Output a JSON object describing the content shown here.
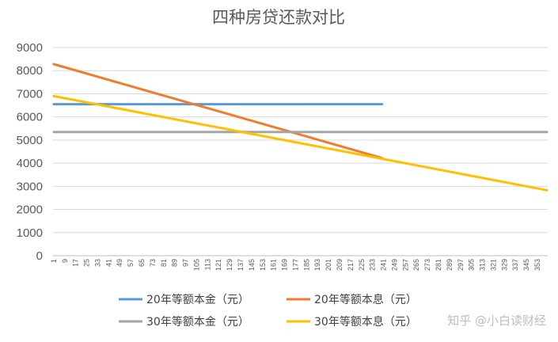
{
  "chart_data": {
    "type": "line",
    "title": "四种房贷还款对比",
    "xlabel": "",
    "ylabel": "",
    "ylim": [
      0,
      9000
    ],
    "yticks": [
      0,
      1000,
      2000,
      3000,
      4000,
      5000,
      6000,
      7000,
      8000,
      9000
    ],
    "xlim": [
      1,
      360
    ],
    "xticks": [
      1,
      9,
      17,
      25,
      33,
      41,
      49,
      57,
      65,
      73,
      81,
      89,
      97,
      105,
      113,
      121,
      129,
      137,
      145,
      153,
      161,
      169,
      177,
      185,
      193,
      201,
      209,
      217,
      225,
      233,
      241,
      249,
      257,
      265,
      273,
      281,
      289,
      297,
      305,
      313,
      321,
      329,
      337,
      345,
      353
    ],
    "grid": true,
    "legend_position": "bottom",
    "series": [
      {
        "name": "20年等额本金（元）",
        "color": "#5b9bd5",
        "x": [
          1,
          240
        ],
        "values": [
          6550,
          6550
        ]
      },
      {
        "name": "20年等额本息（元）",
        "color": "#ed7d31",
        "x": [
          1,
          240
        ],
        "values": [
          8280,
          4220
        ]
      },
      {
        "name": "30年等额本金（元）",
        "color": "#a5a5a5",
        "x": [
          1,
          360
        ],
        "values": [
          5350,
          5350
        ]
      },
      {
        "name": "30年等额本息（元）",
        "color": "#ffc000",
        "x": [
          1,
          360
        ],
        "values": [
          6900,
          2830
        ]
      }
    ]
  },
  "watermark": "知乎 @小白读财经"
}
